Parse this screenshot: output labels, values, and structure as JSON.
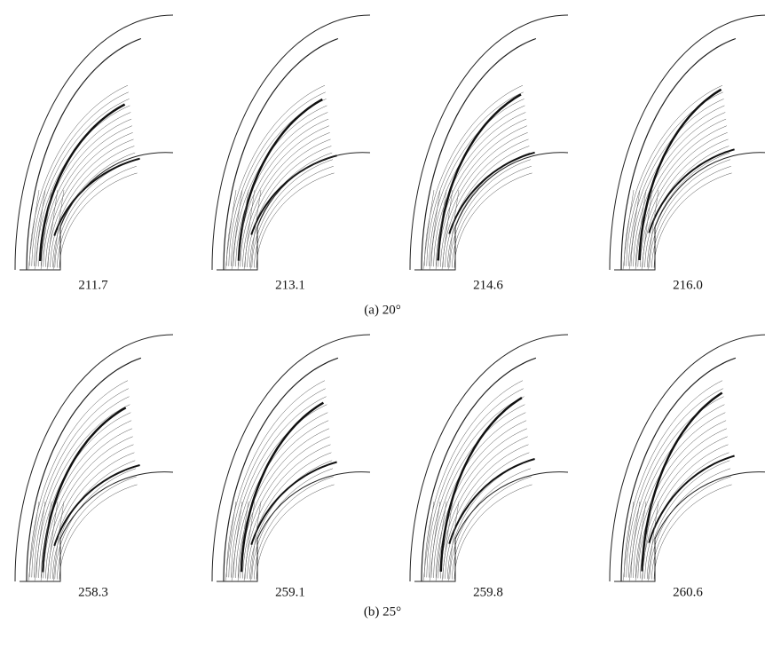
{
  "rows": [
    {
      "caption": "(a)  20°",
      "panels": [
        "211.7",
        "213.1",
        "214.6",
        "216.0"
      ]
    },
    {
      "caption": "(b)  25°",
      "panels": [
        "258.3",
        "259.1",
        "259.8",
        "260.6"
      ]
    }
  ]
}
